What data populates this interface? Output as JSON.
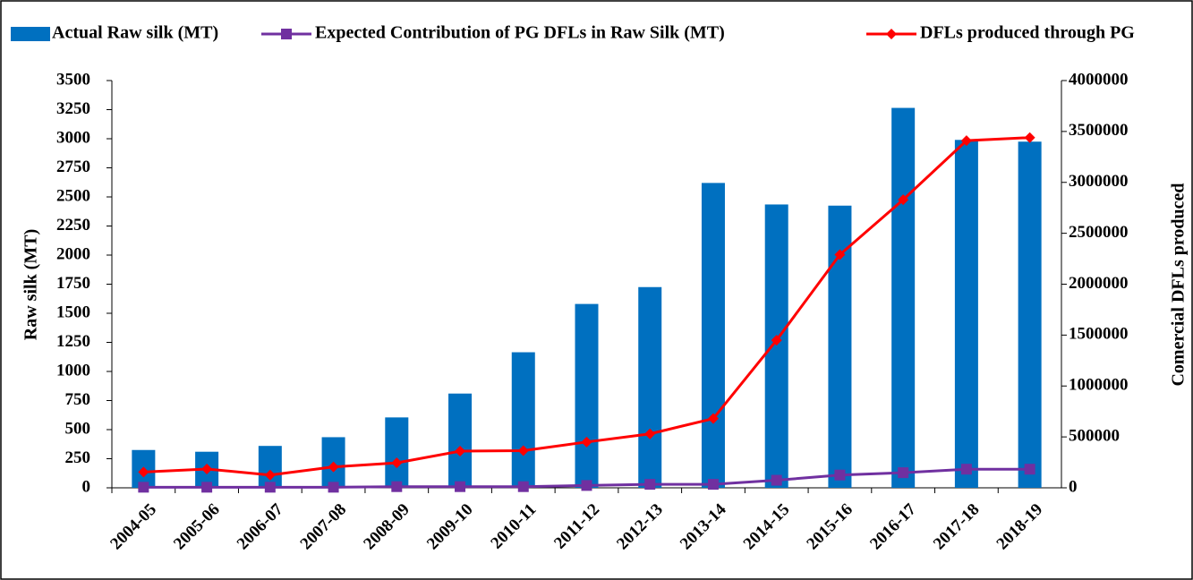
{
  "chart_data": {
    "type": "bar_line",
    "categories": [
      "2004-05",
      "2005-06",
      "2006-07",
      "2007-08",
      "2008-09",
      "2009-10",
      "2010-11",
      "2011-12",
      "2012-13",
      "2013-14",
      "2014-15",
      "2015-16",
      "2016-17",
      "2017-18",
      "2018-19"
    ],
    "series": [
      {
        "name": "Actual Raw silk (MT)",
        "type": "bar",
        "color": "#0070c0",
        "axis": "y",
        "values": [
          325,
          310,
          360,
          435,
          605,
          810,
          1165,
          1580,
          1725,
          2620,
          2435,
          2425,
          3265,
          2990,
          2975
        ]
      },
      {
        "name": "Expected Contribution of PG DFLs in Raw Silk (MT)",
        "type": "line",
        "color": "#7030a0",
        "marker": "square",
        "axis": "y",
        "values": [
          5,
          5,
          5,
          5,
          10,
          10,
          10,
          20,
          30,
          30,
          65,
          110,
          130,
          160,
          160
        ]
      },
      {
        "name": "DFLs produced through PG",
        "type": "line",
        "color": "#ff0000",
        "marker": "diamond",
        "axis": "y2",
        "values": [
          155000,
          185000,
          125000,
          205000,
          245000,
          360000,
          365000,
          450000,
          530000,
          680000,
          1450000,
          2290000,
          2830000,
          3410000,
          3440000
        ]
      }
    ],
    "y_label": "Raw silk (MT)",
    "y2_label": "Comercial DFLs produced",
    "ylim": [
      0,
      3500
    ],
    "yticks": [
      0,
      250,
      500,
      750,
      1000,
      1250,
      1500,
      1750,
      2000,
      2250,
      2500,
      2750,
      3000,
      3250,
      3500
    ],
    "y2lim": [
      0,
      4000000
    ],
    "y2ticks": [
      0,
      500000,
      1000000,
      1500000,
      2000000,
      2500000,
      3000000,
      3500000,
      4000000
    ],
    "legend": "top"
  }
}
